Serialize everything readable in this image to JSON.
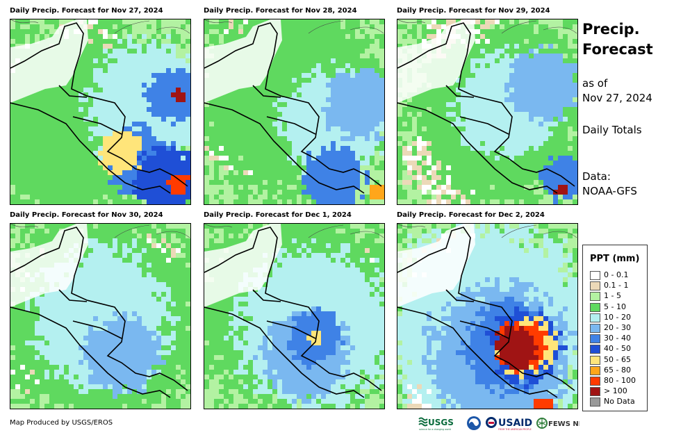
{
  "panels": [
    {
      "title": "Daily Precip. Forecast for Nov 27, 2024"
    },
    {
      "title": "Daily Precip. Forecast for Nov 28, 2024"
    },
    {
      "title": "Daily Precip. Forecast for Nov 29, 2024"
    },
    {
      "title": "Daily Precip. Forecast for Nov 30, 2024"
    },
    {
      "title": "Daily Precip. Forecast for Dec 1, 2024"
    },
    {
      "title": "Daily Precip. Forecast for Dec 2, 2024"
    }
  ],
  "sidebar": {
    "title_line1": "Precip.",
    "title_line2": "Forecast",
    "asof_line1": "as of",
    "asof_line2": "Nov 27, 2024",
    "totals": "Daily Totals",
    "data_line1": "Data:",
    "data_line2": "NOAA-GFS"
  },
  "legend": {
    "title": "PPT (mm)",
    "items": [
      {
        "label": "0 - 0.1",
        "color": "#ffffff"
      },
      {
        "label": "0.1 - 1",
        "color": "#ecd9b8"
      },
      {
        "label": "1 - 5",
        "color": "#b3f2a2"
      },
      {
        "label": "5 - 10",
        "color": "#5fd95f"
      },
      {
        "label": "10 - 20",
        "color": "#b4f0f0"
      },
      {
        "label": "20 - 30",
        "color": "#7ab8f0"
      },
      {
        "label": "30 - 40",
        "color": "#3f82e6"
      },
      {
        "label": "40 - 50",
        "color": "#1f4fd6"
      },
      {
        "label": "50 - 65",
        "color": "#ffe57a"
      },
      {
        "label": "65 - 80",
        "color": "#ffa61a"
      },
      {
        "label": "80 - 100",
        "color": "#ff3b00"
      },
      {
        "label": "> 100",
        "color": "#a01414"
      },
      {
        "label": "No Data",
        "color": "#999999"
      }
    ]
  },
  "footer": {
    "credit": "Map Produced by USGS/EROS"
  },
  "logos": {
    "usgs": "USGS",
    "usgs_tagline": "science for a changing world",
    "usaid": "USAID",
    "usaid_tagline": "FROM THE AMERICAN PEOPLE",
    "fews": "FEWS NET"
  }
}
